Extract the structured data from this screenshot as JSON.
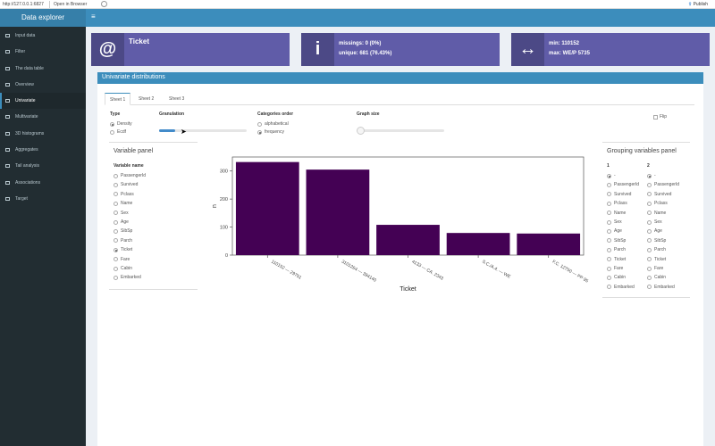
{
  "topbar": {
    "url": "http://127.0.0.1:6827",
    "open_browser": "Open in Browser",
    "publish": "Publish"
  },
  "app": {
    "title": "Data explorer"
  },
  "sidebar": {
    "items": [
      {
        "label": "Input data",
        "icon": "database-icon"
      },
      {
        "label": "Filter",
        "icon": "filter-icon"
      },
      {
        "label": "The data table",
        "icon": "table-icon"
      },
      {
        "label": "Overview",
        "icon": "eye-icon"
      },
      {
        "label": "Univariate",
        "icon": "bar-chart-icon"
      },
      {
        "label": "Multivariate",
        "icon": "grid-icon"
      },
      {
        "label": "3D histograms",
        "icon": "chart-icon"
      },
      {
        "label": "Aggregates",
        "icon": "line-chart-icon"
      },
      {
        "label": "Tail analysis",
        "icon": "search-icon"
      },
      {
        "label": "Associations",
        "icon": "network-icon"
      },
      {
        "label": "Target",
        "icon": "target-icon"
      }
    ],
    "active_index": 4
  },
  "valueboxes": {
    "name": {
      "title": "Ticket",
      "icon": "@"
    },
    "missing": {
      "line1": "missings: 0 (0%)",
      "line2": "unique: 681 (76.43%)",
      "icon": "i"
    },
    "range": {
      "line1": "min: 110152",
      "line2": "max: WE/P 5735",
      "icon": "arrows-horizontal-icon"
    }
  },
  "main": {
    "title": "Univariate distributions",
    "tabs": [
      "Sheet 1",
      "Sheet 2",
      "Sheet 3"
    ],
    "type_label": "Type",
    "type_options": [
      "Density",
      "Ecdf"
    ],
    "granulation_label": "Granulation",
    "granulation_value": 0.18,
    "categories_label": "Categories order",
    "categories_options": [
      "alphabetical",
      "frequency"
    ],
    "graph_size_label": "Graph size",
    "graph_size_value": 0,
    "flip_label": "Flip"
  },
  "variable_panel": {
    "title": "Variable panel",
    "name_label": "Variable name",
    "variables": [
      "PassengerId",
      "Survived",
      "Pclass",
      "Name",
      "Sex",
      "Age",
      "SibSp",
      "Parch",
      "Ticket",
      "Fare",
      "Cabin",
      "Embarked"
    ],
    "selected": "Ticket"
  },
  "grouping_panel": {
    "title": "Grouping variables panel",
    "col1_label": "1",
    "col2_label": "2",
    "none_label": "-",
    "variables": [
      "PassengerId",
      "Survived",
      "Pclass",
      "Name",
      "Sex",
      "Age",
      "SibSp",
      "Parch",
      "Ticket",
      "Fare",
      "Cabin",
      "Embarked"
    ]
  },
  "colors": {
    "header": "#3c8dbc",
    "sidebar": "#222d32",
    "valuebox": "#605ca8",
    "bar": "#440154"
  },
  "chart_data": {
    "type": "bar",
    "categories": [
      "110152 — 29751",
      "3101264 — 394140",
      "4133 — CA. 2343",
      "S.C./A.4. — WE",
      "F.C. 12750 — PP 95"
    ],
    "values": [
      332,
      305,
      108,
      79,
      77
    ],
    "xlabel": "Ticket",
    "ylabel": "n",
    "yticks": [
      0,
      100,
      200,
      300
    ],
    "ylim": [
      0,
      350
    ],
    "grid": false
  }
}
